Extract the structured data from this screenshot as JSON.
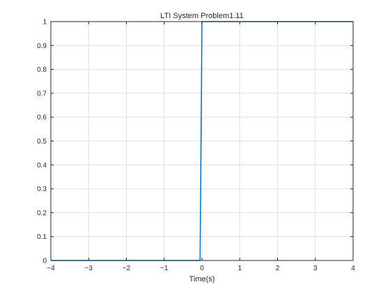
{
  "chart_data": {
    "type": "line",
    "title": "LTI System Problem1.11",
    "xlabel": "Time(s)",
    "ylabel": "",
    "xlim": [
      -4,
      4
    ],
    "ylim": [
      0,
      1
    ],
    "xticks": [
      "-4",
      "-3",
      "-2",
      "-1",
      "0",
      "1",
      "2",
      "3",
      "4"
    ],
    "yticks": [
      "0",
      "0.1",
      "0.2",
      "0.3",
      "0.4",
      "0.5",
      "0.6",
      "0.7",
      "0.8",
      "0.9",
      "1"
    ],
    "grid": true,
    "series": [
      {
        "color": "#0072bd",
        "x": [
          -4,
          -0.05,
          0,
          4
        ],
        "y": [
          0,
          0,
          1,
          1
        ]
      }
    ]
  }
}
